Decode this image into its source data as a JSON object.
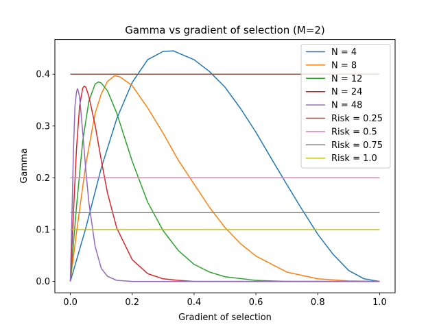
{
  "chart_data": {
    "type": "line",
    "title": "Gamma vs gradient of selection (M=2)",
    "xlabel": "Gradient of selection",
    "ylabel": "Gamma",
    "xlim": [
      -0.05,
      1.05
    ],
    "ylim": [
      -0.022,
      0.467
    ],
    "xticks": [
      0.0,
      0.2,
      0.4,
      0.6,
      0.8,
      1.0
    ],
    "xtick_labels": [
      "0.0",
      "0.2",
      "0.4",
      "0.6",
      "0.8",
      "1.0"
    ],
    "yticks": [
      0.0,
      0.1,
      0.2,
      0.3,
      0.4
    ],
    "ytick_labels": [
      "0.0",
      "0.1",
      "0.2",
      "0.3",
      "0.4"
    ],
    "grid": false,
    "legend_placement": "top-right",
    "legend": [
      "N = 4",
      "N = 8",
      "N = 12",
      "N = 24",
      "N = 48",
      "Risk = 0.25",
      "Risk = 0.5",
      "Risk = 0.75",
      "Risk = 1.0"
    ],
    "series": [
      {
        "name": "N = 4",
        "color": "#1f77b4",
        "x": [
          0,
          0.05,
          0.1,
          0.15,
          0.2,
          0.25,
          0.3,
          0.333,
          0.4,
          0.45,
          0.5,
          0.55,
          0.6,
          0.65,
          0.7,
          0.75,
          0.8,
          0.85,
          0.9,
          0.95,
          1.0
        ],
        "y": [
          0,
          0.103,
          0.219,
          0.314,
          0.384,
          0.428,
          0.444,
          0.445,
          0.428,
          0.405,
          0.375,
          0.334,
          0.288,
          0.237,
          0.187,
          0.138,
          0.091,
          0.052,
          0.021,
          0.005,
          0
        ]
      },
      {
        "name": "N = 8",
        "color": "#ff7f0e",
        "x": [
          0,
          0.02,
          0.05,
          0.08,
          0.1,
          0.12,
          0.143,
          0.16,
          0.2,
          0.25,
          0.3,
          0.35,
          0.4,
          0.45,
          0.5,
          0.55,
          0.6,
          0.7,
          0.8,
          0.9,
          1.0
        ],
        "y": [
          0,
          0.095,
          0.226,
          0.324,
          0.362,
          0.386,
          0.397,
          0.395,
          0.378,
          0.335,
          0.286,
          0.233,
          0.188,
          0.143,
          0.104,
          0.073,
          0.049,
          0.018,
          0.005,
          0.001,
          0
        ]
      },
      {
        "name": "N = 12",
        "color": "#2ca02c",
        "x": [
          0,
          0.02,
          0.04,
          0.06,
          0.08,
          0.091,
          0.1,
          0.12,
          0.15,
          0.2,
          0.25,
          0.3,
          0.35,
          0.4,
          0.45,
          0.5,
          0.6,
          0.7,
          0.8,
          1.0
        ],
        "y": [
          0,
          0.145,
          0.271,
          0.348,
          0.381,
          0.385,
          0.383,
          0.368,
          0.325,
          0.232,
          0.153,
          0.098,
          0.059,
          0.033,
          0.018,
          0.009,
          0.002,
          0,
          0,
          0
        ]
      },
      {
        "name": "N = 24",
        "color": "#d62728",
        "x": [
          0,
          0.01,
          0.02,
          0.03,
          0.04,
          0.045,
          0.05,
          0.06,
          0.08,
          0.1,
          0.12,
          0.15,
          0.2,
          0.25,
          0.3,
          0.35,
          0.4,
          0.5,
          1.0
        ],
        "y": [
          0,
          0.131,
          0.257,
          0.339,
          0.373,
          0.377,
          0.375,
          0.357,
          0.302,
          0.234,
          0.171,
          0.103,
          0.042,
          0.015,
          0.005,
          0.002,
          0,
          0,
          0
        ]
      },
      {
        "name": "N = 48",
        "color": "#9467bd",
        "x": [
          0,
          0.005,
          0.01,
          0.015,
          0.02,
          0.023,
          0.025,
          0.03,
          0.04,
          0.05,
          0.06,
          0.08,
          0.1,
          0.12,
          0.15,
          0.2,
          0.3,
          1.0
        ],
        "y": [
          0,
          0.122,
          0.251,
          0.338,
          0.366,
          0.372,
          0.369,
          0.356,
          0.288,
          0.215,
          0.152,
          0.068,
          0.025,
          0.01,
          0.002,
          0,
          0,
          0
        ]
      },
      {
        "name": "Risk = 0.25",
        "color": "#8c564b",
        "x": [
          0,
          1.0
        ],
        "y": [
          0.4,
          0.4
        ]
      },
      {
        "name": "Risk = 0.5",
        "color": "#e377c2",
        "x": [
          0,
          1.0
        ],
        "y": [
          0.2,
          0.2
        ]
      },
      {
        "name": "Risk = 0.75",
        "color": "#7f7f7f",
        "x": [
          0,
          1.0
        ],
        "y": [
          0.133,
          0.133
        ]
      },
      {
        "name": "Risk = 1.0",
        "color": "#bcbd22",
        "x": [
          0,
          1.0
        ],
        "y": [
          0.1,
          0.1
        ]
      }
    ]
  }
}
